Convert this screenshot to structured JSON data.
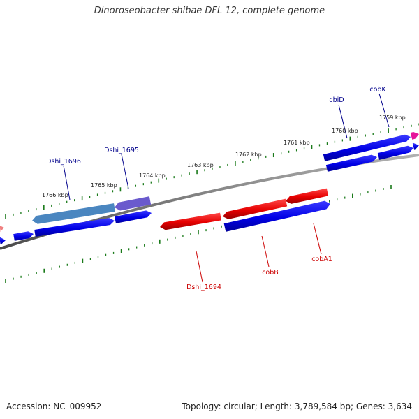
{
  "title": "Dinoroseobacter shibae DFL 12, complete genome",
  "footer": {
    "accession": "Accession: NC_009952",
    "summary": "Topology: circular; Length: 3,789,584 bp; Genes: 3,634"
  },
  "scale_labels": [
    "1766 kbp",
    "1765 kbp",
    "1764 kbp",
    "1763 kbp",
    "1762 kbp",
    "1761 kbp",
    "1760 kbp",
    "1759 kbp"
  ],
  "gene_labels": [
    {
      "id": "Dshi_1696",
      "text": "Dshi_1696",
      "color": "#00008b"
    },
    {
      "id": "Dshi_1695",
      "text": "Dshi_1695",
      "color": "#00008b"
    },
    {
      "id": "cbiD",
      "text": "cbiD",
      "color": "#00008b"
    },
    {
      "id": "cobK",
      "text": "cobK",
      "color": "#00008b"
    },
    {
      "id": "Dshi_1694",
      "text": "Dshi_1694",
      "color": "#cc0000"
    },
    {
      "id": "cobB",
      "text": "cobB",
      "color": "#cc0000"
    },
    {
      "id": "cobA1",
      "text": "cobA1",
      "color": "#cc0000"
    }
  ],
  "colors": {
    "forward_gene": "#0000e6",
    "reverse_gene": "#e60000",
    "highlight_blue": "#4a86c0",
    "highlight_purple": "#6a5acd",
    "magenta_gene": "#e6139a",
    "pink_gene": "#f08080",
    "backbone": "#808080",
    "tick": "#1a7a1a"
  }
}
